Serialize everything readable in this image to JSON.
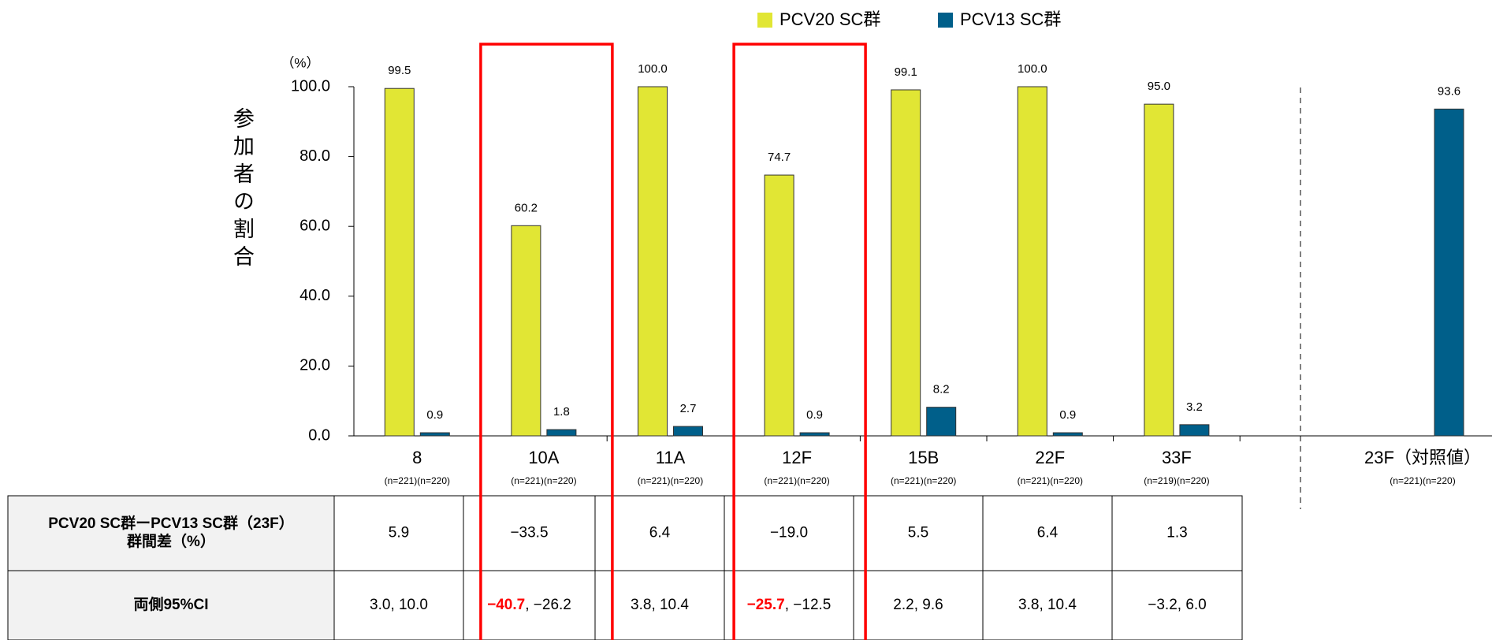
{
  "chart_data": {
    "type": "bar",
    "unit_label": "（%）",
    "y_label": "参加者の割合",
    "categories": [
      "8",
      "10A",
      "11A",
      "12F",
      "15B",
      "22F",
      "33F",
      "23F（対照値）"
    ],
    "category_notes": [
      "(n=221)(n=220)",
      "(n=221)(n=220)",
      "(n=221)(n=220)",
      "(n=221)(n=220)",
      "(n=221)(n=220)",
      "(n=221)(n=220)",
      "(n=219)(n=220)",
      "(n=221)(n=220)"
    ],
    "series": [
      {
        "name": "PCV20 SC群",
        "color": "#e1e634",
        "values": [
          99.5,
          60.2,
          100.0,
          74.7,
          99.1,
          100.0,
          95.0,
          null
        ],
        "value_labels": [
          "99.5",
          "60.2",
          "100.0",
          "74.7",
          "99.1",
          "100.0",
          "95.0",
          null
        ]
      },
      {
        "name": "PCV13 SC群",
        "color": "#005f8a",
        "values": [
          0.9,
          1.8,
          2.7,
          0.9,
          8.2,
          0.9,
          3.2,
          93.6
        ],
        "value_labels": [
          "0.9",
          "1.8",
          "2.7",
          "0.9",
          "8.2",
          "0.9",
          "3.2",
          "93.6"
        ]
      }
    ],
    "ylim": [
      0,
      100
    ],
    "yticks": [
      {
        "value": 0,
        "label": "0.0"
      },
      {
        "value": 20,
        "label": "20.0"
      },
      {
        "value": 40,
        "label": "40.0"
      },
      {
        "value": 60,
        "label": "60.0"
      },
      {
        "value": 80,
        "label": "80.0"
      },
      {
        "value": 100,
        "label": "100.0"
      }
    ],
    "highlight": [
      1,
      3
    ],
    "highlight_color": "#ff0000"
  },
  "table": {
    "rows": [
      {
        "header": [
          "PCV20 SC群ーPCV13 SC群（23F）",
          "群間差（%）"
        ],
        "cells": [
          "5.9",
          "−33.5",
          "6.4",
          "−19.0",
          "5.5",
          "6.4",
          "1.3"
        ]
      },
      {
        "header": [
          "両側95%CI"
        ],
        "cells": [
          [
            "3.0",
            ", 10.0"
          ],
          [
            "−40.7",
            ", −26.2"
          ],
          [
            "3.8",
            ", 10.4"
          ],
          [
            "−25.7",
            ", −12.5"
          ],
          [
            "2.2",
            ", 9.6"
          ],
          [
            "3.8",
            ", 10.4"
          ],
          [
            "−3.2",
            ", 6.0"
          ]
        ]
      }
    ]
  }
}
